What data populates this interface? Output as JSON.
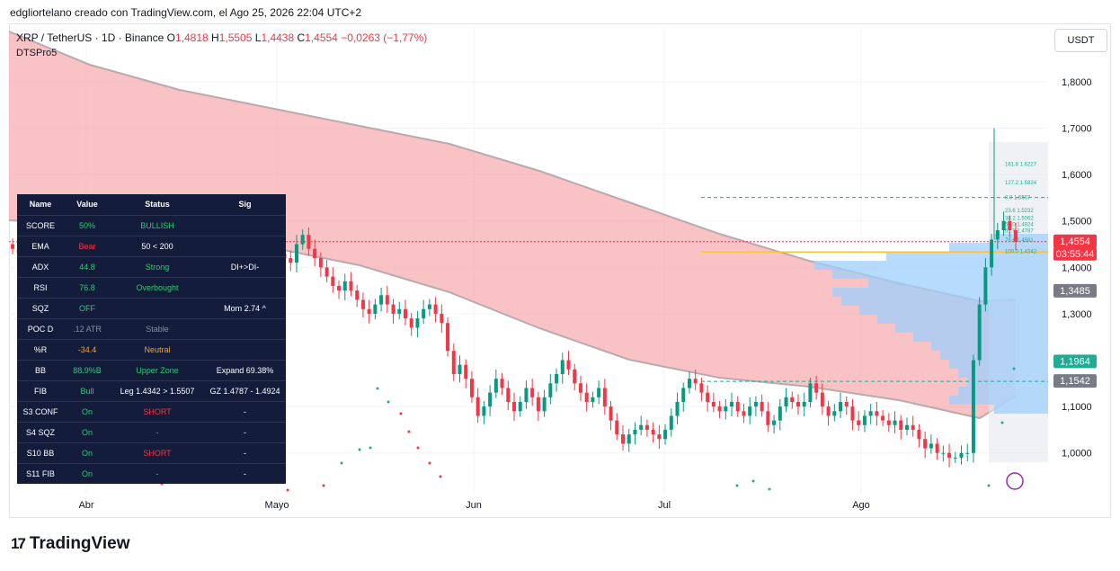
{
  "watermark_line": "edgliortelano creado con TradingView.com, el Ago 25, 2026 22:04 UTC+2",
  "header": {
    "symbol": "XRP / TetherUS · 1D · Binance",
    "o_label": "O",
    "o_value": "1,4818",
    "h_label": "H",
    "h_value": "1,5505",
    "l_label": "L",
    "l_value": "1,4438",
    "c_label": "C",
    "c_value": "1,4554",
    "change": "−0,0263 (−1,77%)",
    "indicator": "DTSPro5"
  },
  "currency_button": "USDT",
  "brand": "TradingView",
  "colors": {
    "up": "#089981",
    "down": "#f23645",
    "cloud": "#f7a8ac",
    "volume_profile": "#9fcffb",
    "fib_gold": "#f2c14e"
  },
  "dashboard": {
    "headers": [
      "Name",
      "Value",
      "Status",
      "Sig"
    ],
    "rows": [
      {
        "name": "SCORE",
        "value": "50%",
        "status": "BULLISH",
        "sig": "",
        "vc": "#2ecc71",
        "sc": "#2ecc71"
      },
      {
        "name": "EMA",
        "value": "Bear",
        "status": "50 < 200",
        "sig": "",
        "vc": "#f23645",
        "sc": "#ffffff"
      },
      {
        "name": "ADX",
        "value": "44.8",
        "status": "Strong",
        "sig": "DI+>DI-",
        "vc": "#2ecc71",
        "sc": "#2ecc71"
      },
      {
        "name": "RSI",
        "value": "76.8",
        "status": "Overbought",
        "sig": "",
        "vc": "#2ecc71",
        "sc": "#2ecc71"
      },
      {
        "name": "SQZ",
        "value": "OFF",
        "status": "",
        "sig": "Mom 2.74 ^",
        "vc": "#2ecc71",
        "sc": "#ffffff"
      },
      {
        "name": "POC D",
        "value": ".12 ATR",
        "status": "Stable",
        "sig": "",
        "vc": "#8a8fa3",
        "sc": "#8a8fa3"
      },
      {
        "name": "%R",
        "value": "-34.4",
        "status": "Neutral",
        "sig": "",
        "vc": "#f5a623",
        "sc": "#f5a623"
      },
      {
        "name": "BB",
        "value": "88.9%B",
        "status": "Upper Zone",
        "sig": "Expand 69.38%",
        "vc": "#2ecc71",
        "sc": "#2ecc71"
      },
      {
        "name": "FIB",
        "value": "Bull",
        "status": "Leg 1.4342 > 1.5507",
        "sig": "GZ 1.4787 - 1.4924",
        "vc": "#2ecc71",
        "sc": "#ffffff"
      },
      {
        "name": "S3 CONF",
        "value": "On",
        "status": "SHORT",
        "sig": "-",
        "vc": "#2ecc71",
        "sc": "#f23645"
      },
      {
        "name": "S4 SQZ",
        "value": "On",
        "status": "-",
        "sig": "-",
        "vc": "#2ecc71",
        "sc": "#8a8fa3"
      },
      {
        "name": "S10 BB",
        "value": "On",
        "status": "SHORT",
        "sig": "-",
        "vc": "#2ecc71",
        "sc": "#f23645"
      },
      {
        "name": "S11 FIB",
        "value": "On",
        "status": "-",
        "sig": "-",
        "vc": "#2ecc71",
        "sc": "#8a8fa3"
      }
    ]
  },
  "chart_data": {
    "type": "candlestick",
    "x_ticks": [
      "Abr",
      "Mayo",
      "Jun",
      "Jul",
      "Ago"
    ],
    "y_ticks": [
      "1,8000",
      "1,7000",
      "1,6000",
      "1,5000",
      "1,4000",
      "1,3000",
      "1,1000",
      "1,0000"
    ],
    "ylim": [
      0.92,
      1.86
    ],
    "price_badges": [
      {
        "label": "1,4554",
        "color": "#f23645",
        "value": 1.4554
      },
      {
        "label": "03:55:44",
        "color": "#f23645",
        "value": 1.4554
      },
      {
        "label": "1,3485",
        "color": "#787b86",
        "value": 1.3485
      },
      {
        "label": "1,1964",
        "color": "#22ab94",
        "value": 1.1964
      },
      {
        "label": "1,1542",
        "color": "#787b86",
        "value": 1.1542
      }
    ],
    "fib_labels": [
      "161.8  1.6227",
      "127.2  1.5824",
      "0.0  1.5507",
      "23.6  1.5232",
      "38.2  1.5062",
      "50.0  1.4924",
      "61.8  1.4787",
      "78.6  1.4591",
      "100.0  1.4342"
    ],
    "closes": [
      1.44,
      1.43,
      1.41,
      1.38,
      1.39,
      1.42,
      1.4,
      1.37,
      1.35,
      1.33,
      1.3,
      1.32,
      1.35,
      1.38,
      1.36,
      1.34,
      1.31,
      1.29,
      1.32,
      1.36,
      1.4,
      1.44,
      1.48,
      1.45,
      1.43,
      1.41,
      1.4,
      1.42,
      1.44,
      1.42,
      1.43,
      1.41,
      1.4,
      1.38,
      1.36,
      1.37,
      1.39,
      1.4,
      1.41,
      1.42,
      1.39,
      1.41,
      1.44,
      1.46,
      1.43,
      1.42,
      1.41,
      1.45,
      1.47,
      1.44,
      1.42,
      1.4,
      1.38,
      1.36,
      1.35,
      1.37,
      1.35,
      1.33,
      1.31,
      1.3,
      1.32,
      1.34,
      1.32,
      1.3,
      1.31,
      1.29,
      1.27,
      1.29,
      1.31,
      1.32,
      1.3,
      1.28,
      1.22,
      1.17,
      1.19,
      1.16,
      1.12,
      1.08,
      1.1,
      1.13,
      1.16,
      1.14,
      1.11,
      1.09,
      1.11,
      1.14,
      1.12,
      1.09,
      1.12,
      1.15,
      1.17,
      1.2,
      1.18,
      1.15,
      1.13,
      1.11,
      1.12,
      1.14,
      1.1,
      1.07,
      1.04,
      1.02,
      1.04,
      1.05,
      1.06,
      1.05,
      1.04,
      1.03,
      1.05,
      1.08,
      1.11,
      1.14,
      1.16,
      1.15,
      1.13,
      1.11,
      1.1,
      1.09,
      1.1,
      1.11,
      1.09,
      1.08,
      1.1,
      1.11,
      1.09,
      1.06,
      1.07,
      1.1,
      1.12,
      1.11,
      1.1,
      1.11,
      1.15,
      1.13,
      1.1,
      1.08,
      1.09,
      1.11,
      1.1,
      1.07,
      1.06,
      1.08,
      1.09,
      1.08,
      1.07,
      1.06,
      1.07,
      1.05,
      1.06,
      1.05,
      1.03,
      1.01,
      1.02,
      1.0,
      1.0,
      0.99,
      0.99,
      1.0,
      1.0,
      1.2,
      1.32,
      1.4,
      1.46,
      1.48,
      1.5,
      1.48,
      1.4554
    ]
  }
}
